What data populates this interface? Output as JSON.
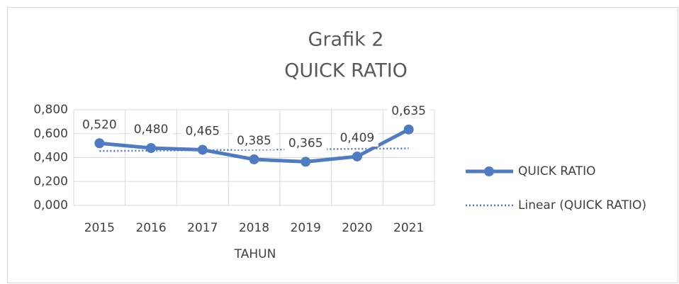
{
  "chart_data": {
    "type": "line",
    "title": [
      "Grafik 2",
      "QUICK RATIO"
    ],
    "x_label": "TAHUN",
    "categories": [
      "2015",
      "2016",
      "2017",
      "2018",
      "2019",
      "2020",
      "2021"
    ],
    "series": [
      {
        "name": "QUICK RATIO",
        "color": "#4f7bc2",
        "style": "solid",
        "markers": true,
        "values": [
          0.52,
          0.48,
          0.465,
          0.385,
          0.365,
          0.409,
          0.635
        ],
        "value_labels": [
          "0,520",
          "0,480",
          "0,465",
          "0,385",
          "0,365",
          "0,409",
          "0,635"
        ]
      },
      {
        "name": "Linear (QUICK RATIO)",
        "color": "#4f7bc2",
        "style": "dotted",
        "markers": false,
        "values": [
          0.455,
          0.458,
          0.462,
          0.466,
          0.469,
          0.473,
          0.477
        ]
      }
    ],
    "ylim": [
      0,
      0.8
    ],
    "yticks": [
      {
        "value": 0,
        "label": "0,000"
      },
      {
        "value": 0.2,
        "label": "0,200"
      },
      {
        "value": 0.4,
        "label": "0,400"
      },
      {
        "value": 0.6,
        "label": "0,600"
      },
      {
        "value": 0.8,
        "label": "0,800"
      }
    ],
    "grid": true,
    "legend": "right"
  }
}
